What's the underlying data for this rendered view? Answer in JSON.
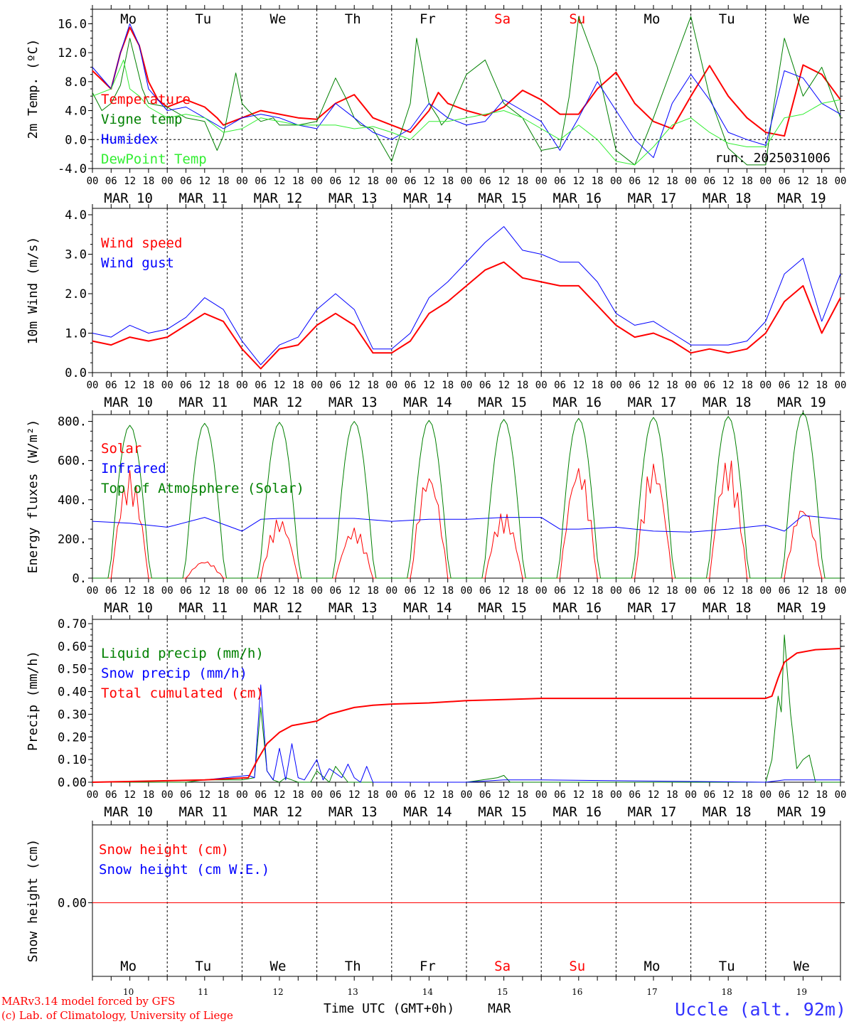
{
  "days": [
    "Mo",
    "Tu",
    "We",
    "Th",
    "Fr",
    "Sa",
    "Su",
    "Mo",
    "Tu",
    "We"
  ],
  "weekend_days": [
    5,
    6
  ],
  "dates": [
    "MAR 10",
    "MAR 11",
    "MAR 12",
    "MAR 13",
    "MAR 14",
    "MAR 15",
    "MAR 16",
    "MAR 17",
    "MAR 18",
    "MAR 19"
  ],
  "day_numbers": [
    "10",
    "11",
    "12",
    "13",
    "14",
    "15",
    "16",
    "17",
    "18",
    "19"
  ],
  "hour_ticks": [
    "00",
    "06",
    "12",
    "18"
  ],
  "hour_tick_last": "00",
  "colors": {
    "red": "#ff0000",
    "blue": "#0000ff",
    "darkgreen": "#008000",
    "lightgreen": "#33ee33",
    "axis": "#000000",
    "weekend": "#ff0000",
    "station": "#3333ff"
  },
  "footer": {
    "credit_line1": "MARv3.14 model forced by GFS",
    "credit_line2": "(c) Lab. of Climatology, University of Liege",
    "xlabel": "Time UTC (GMT+0h)",
    "month": "MAR",
    "station": "Uccle (alt. 92m)"
  },
  "chart_data": [
    {
      "id": "temp",
      "type": "line",
      "ylabel": "2m Temp. (ºC)",
      "ylim": [
        -4,
        18
      ],
      "yticks": [
        -4,
        0,
        4,
        8,
        12,
        16
      ],
      "ytick_labels": [
        "-4.0",
        "0.0",
        "4.0",
        "8.0",
        "12.0",
        "16.0"
      ],
      "zero_line": true,
      "annotation": "run: 2025031006",
      "legend": [
        "Temperature",
        "Vigne temp",
        "Humidex",
        "DewPoint Temp"
      ],
      "series": [
        {
          "name": "Temperature",
          "color": "red",
          "width": 2,
          "x": [
            0,
            6,
            9,
            12,
            15,
            18,
            21,
            24,
            30,
            36,
            40,
            42,
            48,
            54,
            60,
            66,
            72,
            78,
            84,
            90,
            96,
            102,
            108,
            111,
            114,
            120,
            126,
            132,
            138,
            144,
            150,
            156,
            162,
            168,
            174,
            180,
            186,
            192,
            198,
            204,
            210,
            216,
            222,
            228,
            234,
            240
          ],
          "y": [
            9.5,
            7,
            12,
            15.5,
            13,
            8,
            5.5,
            4.5,
            5.5,
            4.5,
            3,
            2,
            3,
            4,
            3.5,
            3,
            2.8,
            5,
            6.2,
            3,
            2,
            1,
            4,
            6.5,
            5,
            4,
            3.3,
            4.5,
            6.8,
            5.5,
            3.5,
            3.5,
            7,
            9.3,
            5,
            2.5,
            1.5,
            6,
            10.2,
            6,
            3,
            1,
            0.5,
            10.3,
            9,
            5.5
          ]
        },
        {
          "name": "Vigne temp",
          "color": "darkgreen",
          "width": 1,
          "x": [
            0,
            3,
            6,
            9,
            12,
            14,
            16,
            18,
            24,
            30,
            36,
            40,
            42,
            46,
            48,
            50,
            54,
            58,
            60,
            66,
            72,
            78,
            81,
            84,
            86,
            90,
            96,
            102,
            104,
            108,
            111,
            112,
            114,
            120,
            126,
            132,
            138,
            144,
            150,
            153,
            156,
            162,
            168,
            174,
            180,
            186,
            192,
            198,
            204,
            210,
            216,
            218,
            222,
            228,
            234,
            240
          ],
          "y": [
            6.5,
            4,
            5,
            7.5,
            14,
            10.5,
            7,
            5,
            4.5,
            3,
            2.5,
            -1.5,
            0.5,
            9.2,
            5,
            4,
            2.5,
            3,
            2,
            2,
            2.5,
            8.5,
            6,
            3,
            2,
            1.5,
            -3,
            5,
            14,
            5,
            3,
            2,
            3,
            9,
            11,
            5,
            3,
            -1.5,
            -1,
            6,
            17,
            10,
            -1.5,
            -3.5,
            3,
            10,
            17,
            6,
            -1.2,
            -3.5,
            -3.5,
            3,
            14,
            6,
            10,
            3
          ]
        },
        {
          "name": "Humidex",
          "color": "blue",
          "width": 1,
          "x": [
            0,
            6,
            9,
            12,
            15,
            18,
            24,
            30,
            36,
            42,
            48,
            54,
            60,
            66,
            72,
            78,
            84,
            90,
            96,
            102,
            108,
            114,
            120,
            126,
            132,
            138,
            144,
            150,
            156,
            162,
            168,
            174,
            180,
            186,
            192,
            198,
            204,
            210,
            216,
            222,
            228,
            234,
            240
          ],
          "y": [
            10,
            7,
            12,
            16,
            13,
            7,
            4,
            4.5,
            3,
            1.5,
            3,
            3.5,
            3,
            2,
            1.5,
            5,
            3,
            1,
            0,
            1.5,
            5,
            3,
            2,
            2.5,
            5.5,
            4,
            2.5,
            -1.5,
            3,
            8,
            4,
            0,
            -2.5,
            5,
            9,
            5.5,
            1,
            0,
            -0.8,
            9.5,
            8.5,
            5,
            3.5
          ]
        },
        {
          "name": "DewPoint Temp",
          "color": "lightgreen",
          "width": 1,
          "x": [
            0,
            6,
            10,
            12,
            15,
            18,
            24,
            30,
            36,
            42,
            48,
            54,
            60,
            66,
            72,
            78,
            84,
            90,
            96,
            102,
            108,
            114,
            120,
            126,
            132,
            138,
            144,
            150,
            156,
            162,
            168,
            174,
            180,
            186,
            192,
            198,
            204,
            210,
            216,
            222,
            228,
            234,
            240
          ],
          "y": [
            6,
            7,
            11,
            7,
            6,
            4.5,
            3,
            3.5,
            3,
            1,
            1.5,
            3,
            2.5,
            2,
            2,
            2,
            1.5,
            1.8,
            1,
            0,
            2.5,
            2.5,
            3,
            3.5,
            4,
            3,
            1.5,
            0,
            2,
            0,
            -3,
            -3.5,
            -1,
            2,
            3,
            1,
            -0.5,
            -1,
            -1,
            3,
            3.5,
            5,
            5.5
          ]
        }
      ]
    },
    {
      "id": "wind",
      "type": "line",
      "ylabel": "10m Wind (m/s)",
      "ylim": [
        0,
        4
      ],
      "yticks": [
        0,
        1,
        2,
        3,
        4
      ],
      "ytick_labels": [
        "0.0",
        "1.0",
        "2.0",
        "3.0",
        "4.0"
      ],
      "legend": [
        "Wind speed",
        "Wind gust"
      ],
      "series": [
        {
          "name": "Wind speed",
          "color": "red",
          "width": 2,
          "x": [
            0,
            6,
            12,
            18,
            24,
            30,
            36,
            42,
            48,
            54,
            60,
            66,
            72,
            78,
            84,
            90,
            96,
            102,
            108,
            114,
            120,
            126,
            132,
            138,
            144,
            150,
            156,
            162,
            168,
            174,
            180,
            186,
            192,
            198,
            204,
            210,
            216,
            222,
            228,
            234,
            240
          ],
          "y": [
            0.8,
            0.7,
            0.9,
            0.8,
            0.9,
            1.2,
            1.5,
            1.3,
            0.6,
            0.1,
            0.6,
            0.7,
            1.2,
            1.5,
            1.2,
            0.5,
            0.5,
            0.8,
            1.5,
            1.8,
            2.2,
            2.6,
            2.8,
            2.4,
            2.3,
            2.2,
            2.2,
            1.7,
            1.2,
            0.9,
            1.0,
            0.8,
            0.5,
            0.6,
            0.5,
            0.6,
            1.0,
            1.8,
            2.2,
            1.0,
            1.9
          ]
        },
        {
          "name": "Wind gust",
          "color": "blue",
          "width": 1,
          "x": [
            0,
            6,
            12,
            18,
            24,
            30,
            36,
            42,
            48,
            54,
            60,
            66,
            72,
            78,
            84,
            90,
            96,
            102,
            108,
            114,
            120,
            126,
            132,
            138,
            144,
            150,
            156,
            162,
            168,
            174,
            180,
            186,
            192,
            198,
            204,
            210,
            216,
            222,
            228,
            234,
            240
          ],
          "y": [
            1.0,
            0.9,
            1.2,
            1.0,
            1.1,
            1.4,
            1.9,
            1.6,
            0.8,
            0.2,
            0.7,
            0.9,
            1.6,
            2.0,
            1.6,
            0.6,
            0.6,
            1.0,
            1.9,
            2.3,
            2.8,
            3.3,
            3.7,
            3.1,
            3.0,
            2.8,
            2.8,
            2.3,
            1.5,
            1.2,
            1.3,
            1.0,
            0.7,
            0.7,
            0.7,
            0.8,
            1.3,
            2.5,
            2.9,
            1.3,
            2.5
          ]
        }
      ]
    },
    {
      "id": "energy",
      "type": "line",
      "ylabel": "Energy fluxes (W/m²)",
      "ylim": [
        0,
        900
      ],
      "yticks": [
        0,
        200,
        400,
        600,
        800
      ],
      "ytick_labels": [
        "0.",
        "200.",
        "400.",
        "600.",
        "800."
      ],
      "legend": [
        "Solar",
        "Infrared",
        "Top of Atmosphere (Solar)"
      ],
      "series": [
        {
          "name": "Solar",
          "color": "red",
          "width": 1,
          "solar_peaks": [
            550,
            90,
            310,
            260,
            550,
            340,
            590,
            600,
            620,
            380
          ]
        },
        {
          "name": "Infrared",
          "color": "blue",
          "width": 1,
          "x": [
            0,
            12,
            24,
            36,
            48,
            54,
            60,
            72,
            84,
            96,
            108,
            120,
            132,
            144,
            150,
            156,
            168,
            180,
            192,
            204,
            216,
            222,
            228,
            240
          ],
          "y": [
            290,
            280,
            260,
            310,
            240,
            300,
            305,
            305,
            305,
            290,
            300,
            300,
            310,
            310,
            250,
            250,
            260,
            240,
            235,
            250,
            270,
            240,
            320,
            300
          ]
        },
        {
          "name": "Top of Atmosphere (Solar)",
          "color": "darkgreen",
          "width": 1,
          "toa_peaks": [
            780,
            790,
            795,
            800,
            805,
            810,
            815,
            820,
            825,
            845
          ]
        }
      ]
    },
    {
      "id": "precip",
      "type": "line",
      "ylabel": "Precip (mm/h)",
      "ylim": [
        0,
        0.7
      ],
      "yticks": [
        0,
        0.1,
        0.2,
        0.3,
        0.4,
        0.5,
        0.6,
        0.7
      ],
      "ytick_labels": [
        "0.00",
        "0.10",
        "0.20",
        "0.30",
        "0.40",
        "0.50",
        "0.60",
        "0.70"
      ],
      "legend": [
        "Liquid precip (mm/h)",
        "Snow precip (mm/h)",
        "Total cumulated (cm)"
      ],
      "series": [
        {
          "name": "Liquid precip (mm/h)",
          "color": "darkgreen",
          "width": 1,
          "x": [
            0,
            30,
            36,
            45,
            48,
            52,
            54,
            56,
            58,
            60,
            62,
            64,
            66,
            70,
            72,
            76,
            78,
            82,
            84,
            96,
            120,
            130,
            132,
            134,
            150,
            216,
            218,
            220,
            221,
            222,
            224,
            226,
            228,
            230,
            232,
            240
          ],
          "y": [
            0,
            0,
            0.01,
            0.01,
            0.01,
            0.02,
            0.33,
            0.05,
            0.01,
            0,
            0.02,
            0.01,
            0,
            0,
            0.05,
            0,
            0.07,
            0,
            0,
            0,
            0,
            0.02,
            0.03,
            0,
            0,
            0,
            0.1,
            0.38,
            0.31,
            0.65,
            0.3,
            0.06,
            0.1,
            0.12,
            0,
            0
          ]
        },
        {
          "name": "Snow precip (mm/h)",
          "color": "blue",
          "width": 1,
          "x": [
            0,
            36,
            50,
            52,
            54,
            56,
            58,
            60,
            62,
            64,
            66,
            68,
            72,
            74,
            76,
            80,
            82,
            84,
            86,
            88,
            90,
            96,
            120,
            132,
            144,
            216,
            222,
            240
          ],
          "y": [
            0,
            0.01,
            0.03,
            0.02,
            0.43,
            0.05,
            0.01,
            0.15,
            0.01,
            0.17,
            0.02,
            0.01,
            0.1,
            0.01,
            0.06,
            0.02,
            0.08,
            0.02,
            0,
            0.07,
            0,
            0,
            0,
            0.01,
            0.01,
            0,
            0.01,
            0.01
          ]
        },
        {
          "name": "Total cumulated (cm)",
          "color": "red",
          "width": 2,
          "x": [
            0,
            36,
            50,
            53,
            56,
            60,
            64,
            72,
            76,
            84,
            90,
            96,
            108,
            120,
            132,
            144,
            150,
            216,
            218,
            220,
            222,
            226,
            232,
            240
          ],
          "y": [
            0,
            0.01,
            0.02,
            0.1,
            0.17,
            0.22,
            0.25,
            0.27,
            0.3,
            0.33,
            0.34,
            0.345,
            0.35,
            0.36,
            0.365,
            0.37,
            0.37,
            0.37,
            0.38,
            0.46,
            0.53,
            0.57,
            0.585,
            0.59
          ]
        }
      ]
    },
    {
      "id": "snow",
      "type": "line",
      "ylabel": "Snow height (cm)",
      "ylim": [
        -1,
        1
      ],
      "yticks": [
        0
      ],
      "ytick_labels": [
        "0.00"
      ],
      "legend": [
        "Snow height (cm)",
        "Snow height (cm W.E.)"
      ],
      "series": [
        {
          "name": "Snow height (cm W.E.)",
          "color": "blue",
          "width": 1,
          "x": [
            0,
            240
          ],
          "y": [
            0,
            0
          ]
        },
        {
          "name": "Snow height (cm)",
          "color": "red",
          "width": 1,
          "x": [
            0,
            240
          ],
          "y": [
            0,
            0
          ]
        }
      ]
    }
  ]
}
